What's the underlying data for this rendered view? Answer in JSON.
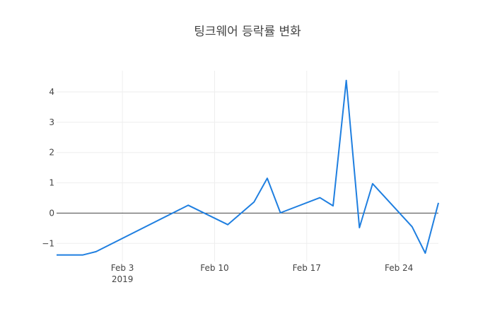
{
  "chart_data": {
    "type": "line",
    "title": "팅크웨어 등락률 변화",
    "xlabel": "",
    "ylabel": "",
    "x_range": [
      "2019-01-29",
      "2019-02-27"
    ],
    "ylim": [
      -1.6,
      4.7
    ],
    "x_ticks": [
      {
        "date": "2019-02-03",
        "label": "Feb 3",
        "sublabel": "2019"
      },
      {
        "date": "2019-02-10",
        "label": "Feb 10",
        "sublabel": ""
      },
      {
        "date": "2019-02-17",
        "label": "Feb 17",
        "sublabel": ""
      },
      {
        "date": "2019-02-24",
        "label": "Feb 24",
        "sublabel": ""
      }
    ],
    "y_ticks": [
      {
        "value": -1,
        "label": "−1"
      },
      {
        "value": 0,
        "label": "0"
      },
      {
        "value": 1,
        "label": "1"
      },
      {
        "value": 2,
        "label": "2"
      },
      {
        "value": 3,
        "label": "3"
      },
      {
        "value": 4,
        "label": "4"
      }
    ],
    "grid": true,
    "series": [
      {
        "color": "#1f7fe0",
        "x": [
          "2019-01-29",
          "2019-01-31",
          "2019-02-01",
          "2019-02-08",
          "2019-02-11",
          "2019-02-13",
          "2019-02-14",
          "2019-02-15",
          "2019-02-18",
          "2019-02-19",
          "2019-02-20",
          "2019-02-21",
          "2019-02-22",
          "2019-02-25",
          "2019-02-26",
          "2019-02-27"
        ],
        "y": [
          -1.38,
          -1.38,
          -1.27,
          0.26,
          -0.38,
          0.37,
          1.15,
          0.01,
          0.51,
          0.24,
          4.38,
          -0.48,
          0.97,
          -0.45,
          -1.32,
          0.34
        ]
      }
    ]
  }
}
